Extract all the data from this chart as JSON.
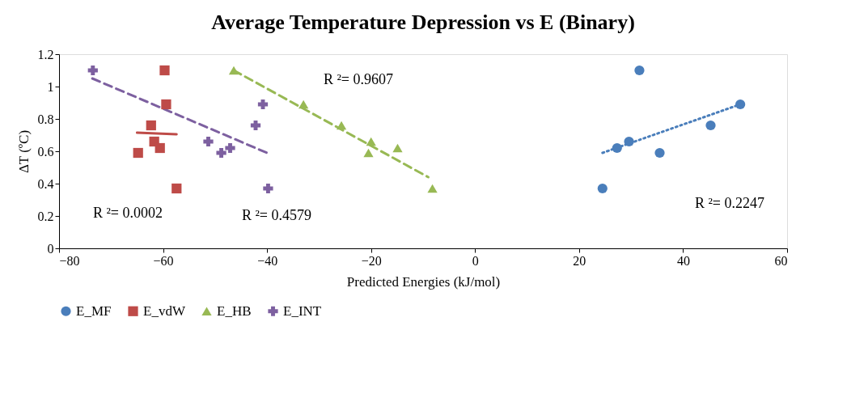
{
  "chart_data": {
    "type": "scatter",
    "title": "Average Temperature Depression vs E (Binary)",
    "xlabel": "Predicted Energies (kJ/mol)",
    "ylabel": "ΔT (ºC)",
    "xlim": [
      -80,
      60
    ],
    "xticks": [
      -80,
      -60,
      -40,
      -20,
      0,
      20,
      40,
      60
    ],
    "ylim": [
      0,
      1.2
    ],
    "yticks": [
      0,
      0.2,
      0.4,
      0.6,
      0.8,
      1,
      1.2
    ],
    "grid": false,
    "legend": "bottom",
    "series": [
      {
        "name": "E_MF",
        "color": "#4a7ebb",
        "marker": "circle",
        "x": [
          24.5,
          27.3,
          29.6,
          31.6,
          35.5,
          45.3,
          51.0
        ],
        "values": [
          0.37,
          0.62,
          0.66,
          1.1,
          0.59,
          0.76,
          0.89
        ]
      },
      {
        "name": "E_vdW",
        "color": "#be4b48",
        "marker": "square",
        "x": [
          -59.7,
          -59.4,
          -62.3,
          -61.7,
          -60.6,
          -64.8,
          -57.4
        ],
        "values": [
          1.1,
          0.89,
          0.76,
          0.66,
          0.62,
          0.59,
          0.37
        ]
      },
      {
        "name": "E_HB",
        "color": "#98b954",
        "marker": "triangle",
        "x": [
          -46.4,
          -33.0,
          -25.7,
          -20.0,
          -20.5,
          -14.9,
          -8.2
        ],
        "values": [
          1.1,
          0.89,
          0.76,
          0.66,
          0.59,
          0.62,
          0.37
        ]
      },
      {
        "name": "E_INT",
        "color": "#7d60a0",
        "marker": "cross",
        "x": [
          -73.5,
          -40.8,
          -42.2,
          -51.3,
          -47.1,
          -48.8,
          -39.8
        ],
        "values": [
          1.1,
          0.89,
          0.76,
          0.66,
          0.62,
          0.59,
          0.37
        ]
      },
      {
        "type": "line",
        "color": "#4a7ebb",
        "line_style": "dotted",
        "x": [
          24.5,
          51.0
        ],
        "values": [
          0.59,
          0.89
        ]
      },
      {
        "type": "line",
        "color": "#be4b48",
        "line_style": "solid",
        "x": [
          -65.0,
          -57.4
        ],
        "values": [
          0.715,
          0.705
        ]
      },
      {
        "type": "line",
        "color": "#98b954",
        "line_style": "dashed",
        "x": [
          -46.4,
          -9.0
        ],
        "values": [
          1.1,
          0.44
        ]
      },
      {
        "type": "line",
        "color": "#7d60a0",
        "line_style": "dashed",
        "x": [
          -73.6,
          -40.0
        ],
        "values": [
          1.05,
          0.59
        ]
      }
    ],
    "annotations": [
      "R ²= 0.0002",
      "R ²= 0.4579",
      "R ²= 0.9607",
      "R ²= 0.2247"
    ]
  }
}
